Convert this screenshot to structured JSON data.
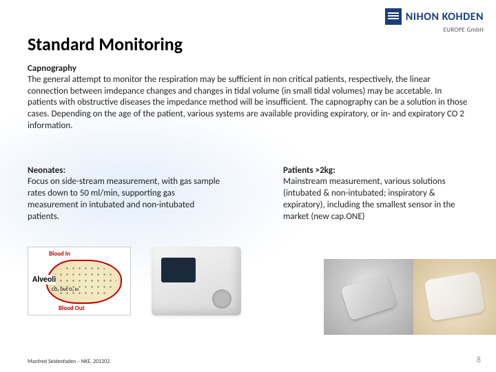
{
  "logo": {
    "brand": "NIHON KOHDEN",
    "subline": "EUROPE GmbH"
  },
  "title": "Standard Monitoring",
  "intro": {
    "heading": "Capnography",
    "body": "The general attempt to monitor the respiration may be sufficient in non critical patients, respectively, the linear connection between imdepance changes and changes in tidal volume (in small tidal volumes) may be accetable. In patients with obstructive diseases the impedance method will be insufficient. The capnography can be a solution in those cases. Depending on the age of the patient, various systems are available providing expiratory, or in- and expiratory CO 2 information."
  },
  "left": {
    "heading": "Neonates:",
    "body": "Focus on side-stream measurement, with gas sample rates down to 50 ml/min, supporting gas measurement in intubated and non-intubated patients."
  },
  "right": {
    "heading": "Patients >2kg:",
    "body": "Mainstream measurement, various solutions (intubated & non-intubated; inspiratory & expiratory), including the smallest sensor in the market (new cap.ONE)"
  },
  "diagram": {
    "blood_in": "Blood In",
    "alveoli": "Alveoli",
    "gas": "CO₂ Out    O₂ In",
    "blood_out": "Blood Out"
  },
  "footer": "Manfred Seidenfaden – NKE, 201202",
  "page": "8",
  "colors": {
    "brand": "#1a3e7a",
    "text": "#222222",
    "blood": "#b00000",
    "pagenum": "#999999"
  }
}
